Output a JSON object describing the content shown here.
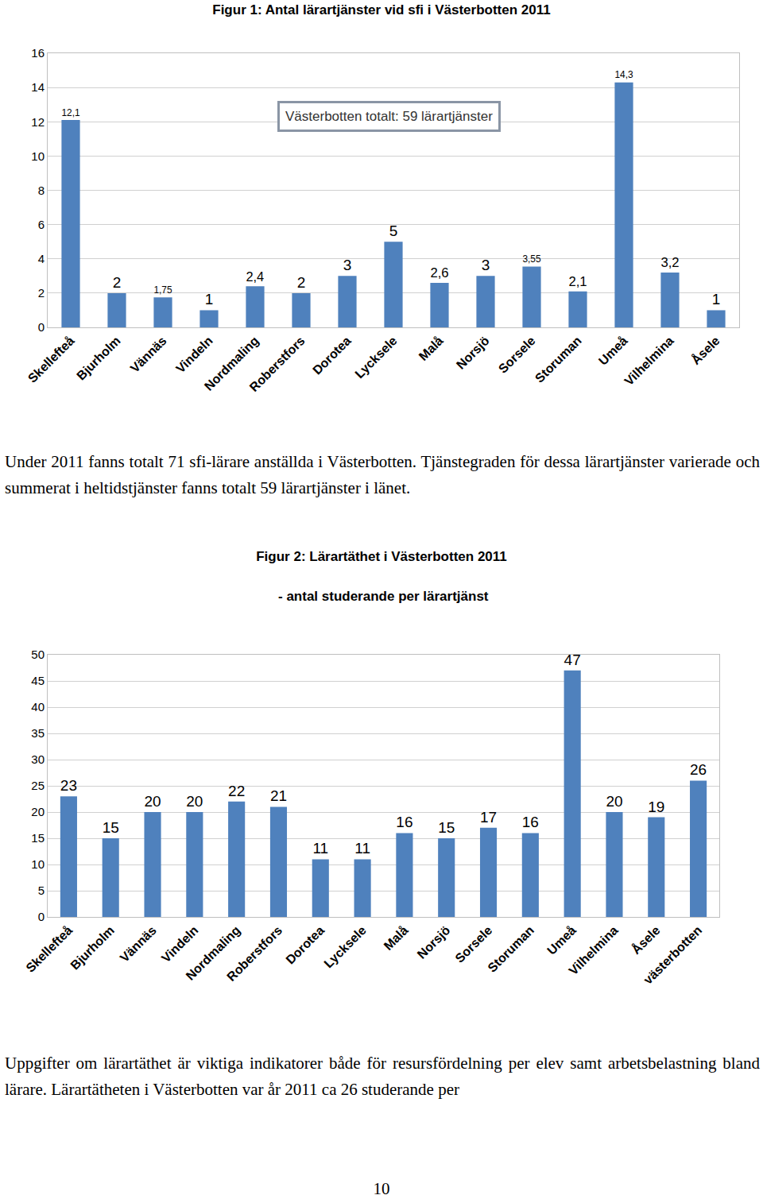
{
  "chart_data": [
    {
      "type": "bar",
      "title": "Figur 1: Antal lärartjänster vid sfi i Västerbotten 2011",
      "categories": [
        "Skellefteå",
        "Bjurholm",
        "Vännäs",
        "Vindeln",
        "Nordmaling",
        "Roberstfors",
        "Dorotea",
        "Lycksele",
        "Malå",
        "Norsjö",
        "Sorsele",
        "Storuman",
        "Umeå",
        "Vilhelmina",
        "Åsele"
      ],
      "values": [
        12.1,
        2,
        1.75,
        1,
        2.4,
        2,
        3,
        5,
        2.6,
        3,
        3.55,
        2.1,
        14.3,
        3.2,
        1
      ],
      "value_labels": [
        "12,1",
        "2",
        "1,75",
        "1",
        "2,4",
        "2",
        "3",
        "5",
        "2,6",
        "3",
        "3,55",
        "2,1",
        "14,3",
        "3,2",
        "1"
      ],
      "data_labels": true,
      "color": "#4f81bd",
      "ylim": [
        0,
        16
      ],
      "yticks": [
        0,
        2,
        4,
        6,
        8,
        10,
        12,
        14,
        16
      ],
      "grid": true,
      "annotations": [
        "Västerbotten totalt: 59 lärartjänster"
      ]
    },
    {
      "type": "bar",
      "title": "Figur 2: Lärartäthet i Västerbotten 2011",
      "subtitle": "- antal studerande per lärartjänst",
      "categories": [
        "Skellefteå",
        "Bjurholm",
        "Vännäs",
        "Vindeln",
        "Nordmaling",
        "Roberstfors",
        "Dorotea",
        "Lycksele",
        "Malå",
        "Norsjö",
        "Sorsele",
        "Storuman",
        "Umeå",
        "Vilhelmina",
        "Åsele",
        "västerbotten"
      ],
      "values": [
        23,
        15,
        20,
        20,
        22,
        21,
        11,
        11,
        16,
        15,
        17,
        16,
        47,
        20,
        19,
        26
      ],
      "data_labels": true,
      "color": "#4f81bd",
      "ylim": [
        0,
        50
      ],
      "yticks": [
        0,
        5,
        10,
        15,
        20,
        25,
        30,
        35,
        40,
        45,
        50
      ],
      "grid": true
    }
  ],
  "paragraphs": [
    "Under 2011 fanns totalt 71 sfi-lärare anställda i Västerbotten. Tjänstegraden för dessa lärartjänster varierade och summerat i heltidstjänster fanns totalt 59 lärartjänster i länet.",
    "Uppgifter om lärartäthet är viktiga indikatorer både för resursfördelning per elev samt arbetsbelastning bland lärare. Lärartätheten i Västerbotten var år 2011 ca 26 studerande per"
  ],
  "page_number": 10
}
